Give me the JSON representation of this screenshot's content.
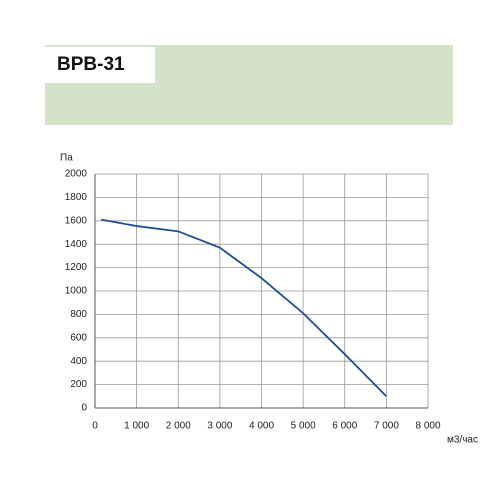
{
  "header": {
    "title": "ВРВ-31"
  },
  "chart_data": {
    "type": "line",
    "y_label": "Па",
    "x_label": "м3/час",
    "x": [
      150,
      1000,
      2000,
      3000,
      4000,
      5000,
      6000,
      7000
    ],
    "series": [
      {
        "name": "ВРВ-31",
        "color": "#1f4f8f",
        "values": [
          1610,
          1555,
          1510,
          1370,
          1110,
          810,
          460,
          100
        ]
      }
    ],
    "xlim": [
      0,
      8000
    ],
    "xticks": [
      0,
      {
        "value": 1000,
        "label": "1 000"
      },
      {
        "value": 2000,
        "label": "2 000"
      },
      {
        "value": 3000,
        "label": "3 000"
      },
      {
        "value": 4000,
        "label": "4 000"
      },
      {
        "value": 5000,
        "label": "5 000"
      },
      {
        "value": 6000,
        "label": "6 000"
      },
      {
        "value": 7000,
        "label": "7 000"
      },
      {
        "value": 8000,
        "label": "8 000"
      }
    ],
    "ylim": [
      0,
      2000
    ],
    "yticks": [
      0,
      200,
      400,
      600,
      800,
      1000,
      1200,
      1400,
      1600,
      1800,
      2000
    ],
    "grid": true
  }
}
